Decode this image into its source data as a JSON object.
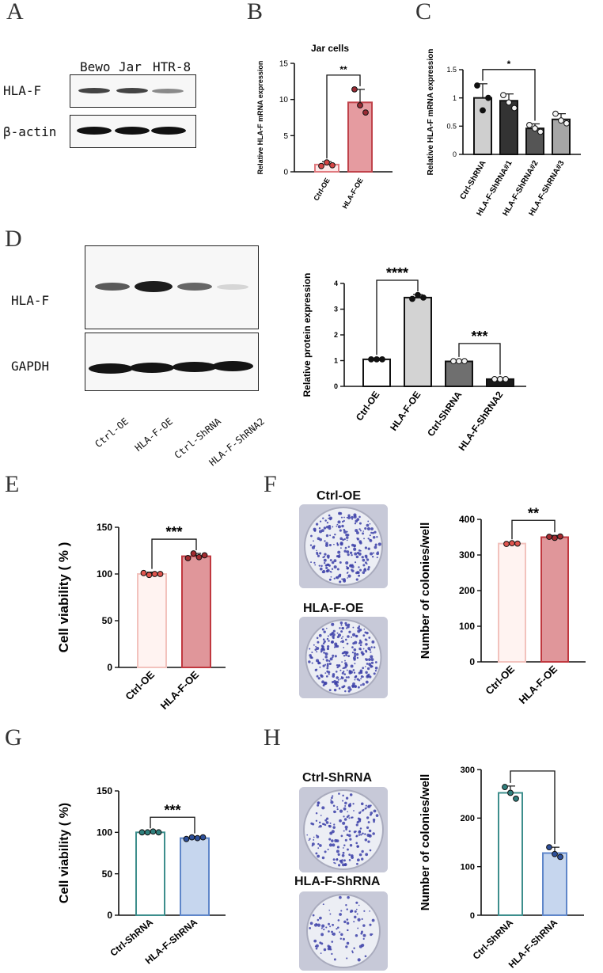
{
  "panels": {
    "A": "A",
    "B": "B",
    "C": "C",
    "D": "D",
    "E": "E",
    "F": "F",
    "G": "G",
    "H": "H"
  },
  "blot_A": {
    "lanes": [
      "Bewo",
      "Jar",
      "HTR-8"
    ],
    "rows": [
      "HLA-F",
      "β-actin"
    ],
    "intensity": {
      "HLA-F": [
        0.75,
        0.75,
        0.45
      ],
      "β-actin": [
        1.0,
        1.0,
        1.0
      ]
    }
  },
  "blot_D": {
    "lanes": [
      "Ctrl-OE",
      "HLA-F-OE",
      "Ctrl-ShRNA",
      "HLA-F-ShRNA2"
    ],
    "rows": [
      "HLA-F",
      "GAPDH"
    ],
    "intensity": {
      "HLA-F": [
        0.7,
        1.0,
        0.65,
        0.2
      ],
      "GAPDH": [
        1.0,
        1.0,
        1.0,
        1.0
      ]
    }
  },
  "colony_F": {
    "labels": [
      "Ctrl-OE",
      "HLA-F-OE"
    ]
  },
  "colony_H": {
    "labels": [
      "Ctrl-ShRNA",
      "HLA-F-ShRNA"
    ]
  },
  "chart_data": [
    {
      "id": "B",
      "type": "bar",
      "title": "Jar cells",
      "ylabel": "Relative HLA-F mRNA expression",
      "categories": [
        "Ctrl-OE",
        "HLA-F-OE"
      ],
      "values": [
        1.0,
        9.6
      ],
      "errors": [
        0.4,
        1.8
      ],
      "points": [
        [
          0.8,
          1.3,
          0.9
        ],
        [
          11.4,
          9.2,
          8.2
        ]
      ],
      "ylim": [
        0,
        15
      ],
      "yticks": [
        0,
        5,
        10,
        15
      ],
      "fills": [
        "#fde8e8",
        "#e59ba0"
      ],
      "strokes": [
        "#e07a7f",
        "#c0434b"
      ],
      "dot_colors": [
        "#d64545",
        "#9a2a33"
      ],
      "sig": [
        {
          "from": 0,
          "to": 1,
          "label": "**"
        }
      ]
    },
    {
      "id": "C",
      "type": "bar",
      "title": "",
      "ylabel": "Relative HLA-F mRNA expression",
      "categories": [
        "Ctrl-ShRNA",
        "HLA-F-ShRNA#1",
        "HLA-F-ShRNA#2",
        "HLA-F-ShRNA#3"
      ],
      "values": [
        1.0,
        0.95,
        0.46,
        0.62
      ],
      "errors": [
        0.25,
        0.12,
        0.08,
        0.1
      ],
      "points": [
        [
          1.22,
          0.78,
          1.0
        ],
        [
          1.05,
          0.92,
          0.82
        ],
        [
          0.52,
          0.46,
          0.4
        ],
        [
          0.72,
          0.6,
          0.55
        ]
      ],
      "ylim": [
        0,
        1.5
      ],
      "yticks": [
        0.0,
        0.5,
        1.0,
        1.5
      ],
      "fills": [
        "#cfcfcf",
        "#333333",
        "#555555",
        "#a6a6a6"
      ],
      "strokes": [
        "#111",
        "#111",
        "#111",
        "#111"
      ],
      "dot_colors": [
        "#111",
        "#f4f4f4",
        "#f4f4f4",
        "#f4f4f4"
      ],
      "sig": [
        {
          "from": 0,
          "to": 2,
          "label": "*"
        }
      ]
    },
    {
      "id": "D",
      "type": "bar",
      "title": "",
      "ylabel": "Relative protein expression",
      "categories": [
        "Ctrl-OE",
        "HLA-F-OE",
        "Ctrl-ShRNA",
        "HLA-F-ShRNA2"
      ],
      "values": [
        1.05,
        3.45,
        0.97,
        0.28
      ],
      "errors": [
        0.05,
        0.12,
        0.05,
        0.05
      ],
      "points": [
        [
          1.05,
          1.05,
          1.05
        ],
        [
          3.4,
          3.55,
          3.45
        ],
        [
          0.98,
          0.98,
          0.98
        ],
        [
          0.28,
          0.28,
          0.28
        ]
      ],
      "ylim": [
        0,
        4
      ],
      "yticks": [
        0,
        1,
        2,
        3,
        4
      ],
      "fills": [
        "#ffffff",
        "#d3d3d3",
        "#6f6f6f",
        "#1a1a1a"
      ],
      "strokes": [
        "#111",
        "#111",
        "#111",
        "#111"
      ],
      "dot_colors": [
        "#111",
        "#111",
        "#f4f4f4",
        "#f4f4f4"
      ],
      "sig": [
        {
          "from": 0,
          "to": 1,
          "label": "****"
        },
        {
          "from": 2,
          "to": 3,
          "label": "***"
        }
      ]
    },
    {
      "id": "E",
      "type": "bar",
      "title": "",
      "ylabel": "Cell viability ( % )",
      "categories": [
        "Ctrl-OE",
        "HLA-F-OE"
      ],
      "values": [
        100,
        119
      ],
      "errors": [
        2,
        3
      ],
      "points": [
        [
          101,
          99,
          100,
          100
        ],
        [
          117,
          122,
          118,
          120
        ]
      ],
      "ylim": [
        0,
        150
      ],
      "yticks": [
        0,
        50,
        100,
        150
      ],
      "fills": [
        "#fff3f1",
        "#e0969a"
      ],
      "strokes": [
        "#f2c2bd",
        "#c0383f"
      ],
      "dot_colors": [
        "#e0554f",
        "#a32b30"
      ],
      "sig": [
        {
          "from": 0,
          "to": 1,
          "label": "***"
        }
      ]
    },
    {
      "id": "F",
      "type": "bar",
      "title": "",
      "ylabel": "Number of colonies/well",
      "categories": [
        "Ctrl-OE",
        "HLA-F-OE"
      ],
      "values": [
        332,
        350
      ],
      "errors": [
        3,
        5
      ],
      "points": [
        [
          331,
          333,
          332
        ],
        [
          351,
          348,
          352
        ]
      ],
      "ylim": [
        0,
        400
      ],
      "yticks": [
        0,
        100,
        200,
        300,
        400
      ],
      "fills": [
        "#fff3f1",
        "#e0969a"
      ],
      "strokes": [
        "#f2c2bd",
        "#c0383f"
      ],
      "dot_colors": [
        "#e0554f",
        "#a32b30"
      ],
      "sig": [
        {
          "from": 0,
          "to": 1,
          "label": "**"
        }
      ]
    },
    {
      "id": "G",
      "type": "bar",
      "title": "",
      "ylabel": "Cell viability ( %)",
      "categories": [
        "Ctrl-ShRNA",
        "HLA-F-ShRNA"
      ],
      "values": [
        100,
        93
      ],
      "errors": [
        1,
        2
      ],
      "points": [
        [
          100,
          100,
          101,
          100
        ],
        [
          92,
          94,
          93,
          94
        ]
      ],
      "ylim": [
        0,
        150
      ],
      "yticks": [
        0,
        50,
        100,
        150
      ],
      "fills": [
        "#ffffff",
        "#c6d6ee"
      ],
      "strokes": [
        "#3d8e8c",
        "#5f86c9"
      ],
      "dot_colors": [
        "#2f7f7d",
        "#2d4f9a"
      ],
      "sig": [
        {
          "from": 0,
          "to": 1,
          "label": "***"
        }
      ]
    },
    {
      "id": "H",
      "type": "bar",
      "title": "",
      "ylabel": "Number of colonies/well",
      "categories": [
        "Ctrl-ShRNA",
        "HLA-F-ShRNA"
      ],
      "values": [
        252,
        128
      ],
      "errors": [
        14,
        12
      ],
      "points": [
        [
          264,
          252,
          240
        ],
        [
          140,
          126,
          120
        ]
      ],
      "ylim": [
        0,
        300
      ],
      "yticks": [
        0,
        100,
        200,
        300
      ],
      "fills": [
        "#ffffff",
        "#c6d6ee"
      ],
      "strokes": [
        "#3d8e8c",
        "#5f86c9"
      ],
      "dot_colors": [
        "#2f7f7d",
        "#2d4f9a"
      ],
      "sig": [
        {
          "from": 0,
          "to": 1,
          "label": "***"
        }
      ]
    }
  ]
}
